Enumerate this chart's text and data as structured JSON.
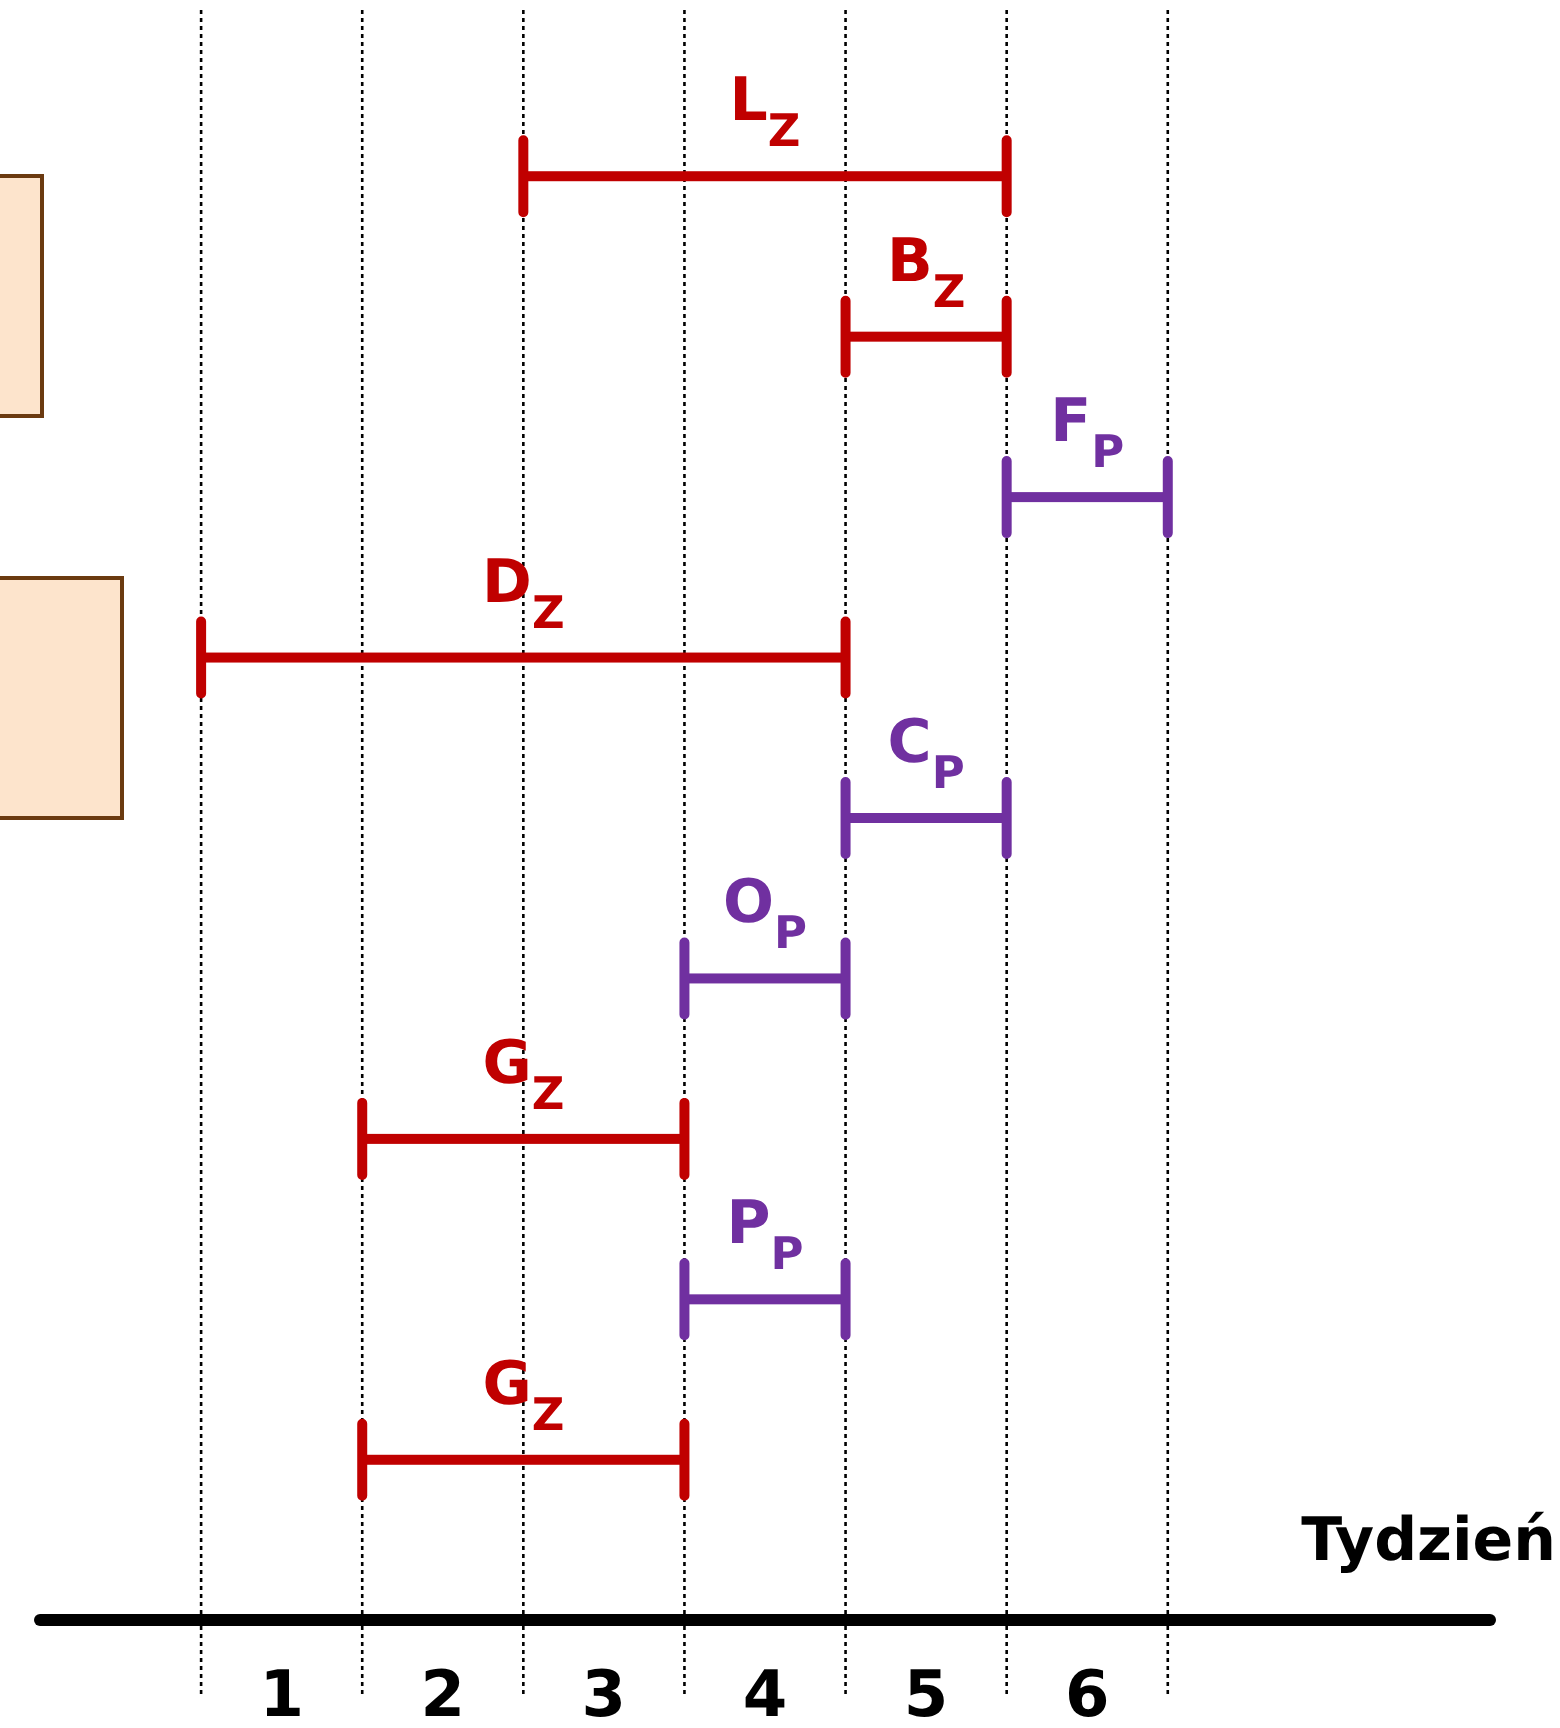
{
  "chart_data": {
    "type": "bar",
    "orientation": "horizontal",
    "xlabel": "Tydzień",
    "categories": [
      "L$_{Z}$",
      "B$_{Z}$",
      "F$_{P}$",
      "D$_{Z}$",
      "C$_{P}$",
      "O$_{P}$",
      "G$_{Z}$",
      "P$_{P}$",
      "G$_{Z}$"
    ],
    "base": [
      2,
      4,
      5,
      0,
      4,
      3,
      1,
      3,
      1
    ],
    "values": [
      3,
      1,
      1,
      4,
      1,
      1,
      2,
      1,
      2
    ],
    "colors": [
      "#c00000",
      "#c00000",
      "#7030a0",
      "#c00000",
      "#7030a0",
      "#7030a0",
      "#c00000",
      "#7030a0",
      "#c00000"
    ],
    "xlim": [
      -1,
      8
    ],
    "xticks": [
      {
        "value": 0.5,
        "label": "1"
      },
      {
        "value": 1.5,
        "label": "2"
      },
      {
        "value": 2.5,
        "label": "3"
      },
      {
        "value": 3.5,
        "label": "4"
      },
      {
        "value": 4.5,
        "label": "5"
      },
      {
        "value": 5.5,
        "label": "6"
      }
    ],
    "ref_lines": [
      {
        "axis": "x",
        "value": 0,
        "line_style": "dotted"
      },
      {
        "axis": "x",
        "value": 1,
        "line_style": "dotted"
      },
      {
        "axis": "x",
        "value": 2,
        "line_style": "dotted"
      },
      {
        "axis": "x",
        "value": 3,
        "line_style": "dotted"
      },
      {
        "axis": "x",
        "value": 4,
        "line_style": "dotted"
      },
      {
        "axis": "x",
        "value": 5,
        "line_style": "dotted"
      },
      {
        "axis": "x",
        "value": 6,
        "line_style": "dotted"
      }
    ]
  }
}
